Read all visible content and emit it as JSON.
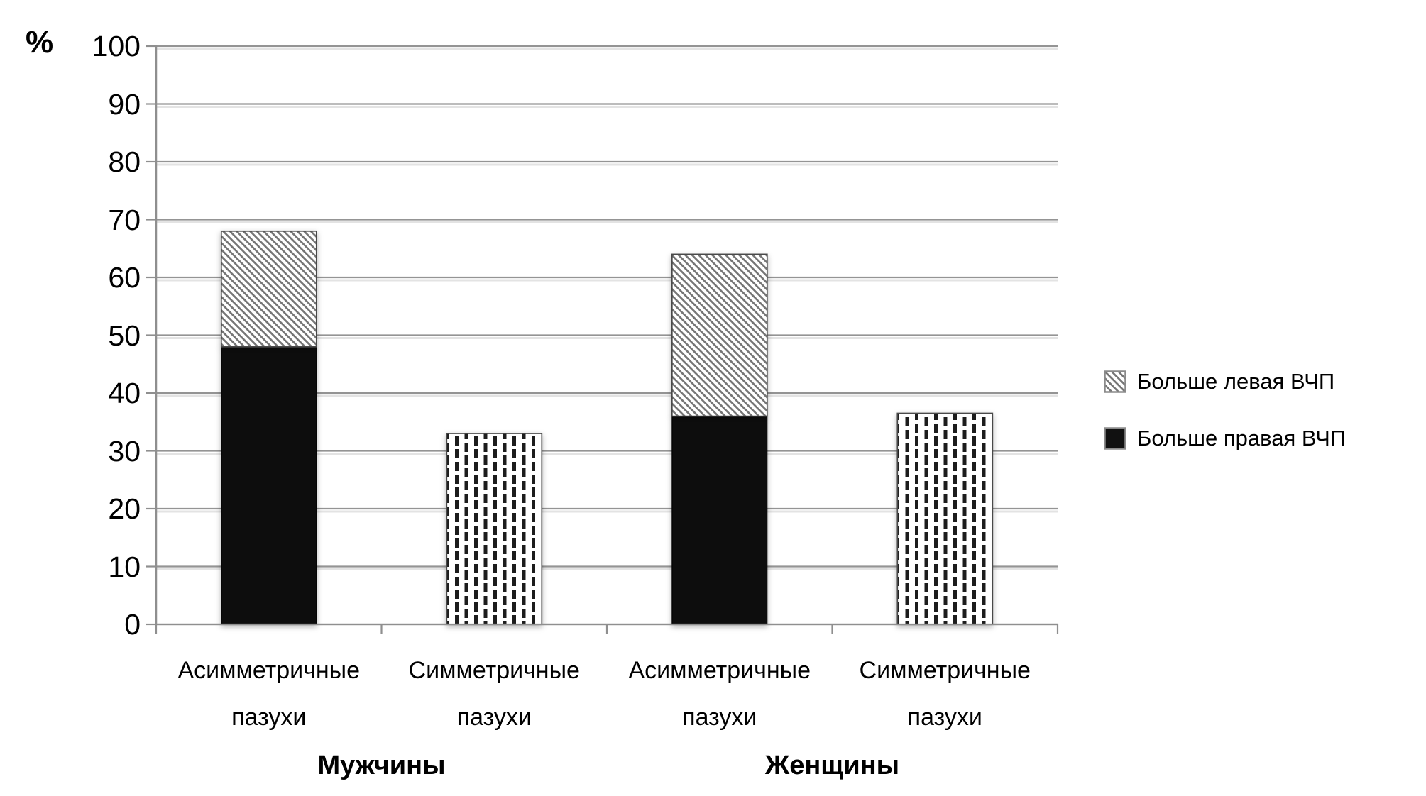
{
  "chart_data": {
    "type": "bar",
    "stacked": true,
    "title": "",
    "y_unit_label": "%",
    "ylabel": "%",
    "xlabel": "",
    "ylim": [
      0,
      100
    ],
    "yticks": [
      0,
      10,
      20,
      30,
      40,
      50,
      60,
      70,
      80,
      90,
      100
    ],
    "grid": true,
    "legend_position": "right",
    "groups": [
      {
        "label": "Мужчины",
        "category_indexes": [
          0,
          1
        ]
      },
      {
        "label": "Женщины",
        "category_indexes": [
          2,
          3
        ]
      }
    ],
    "categories_flat": [
      "Асимметричные пазухи",
      "Симметричные пазухи",
      "Асимметричные пазухи",
      "Симметричные пазухи"
    ],
    "series": [
      {
        "name": "Больше правая ВЧП",
        "in_legend": true,
        "pattern": "solid-black",
        "values": [
          48,
          null,
          36,
          null
        ]
      },
      {
        "name": "Больше левая ВЧП",
        "in_legend": true,
        "pattern": "diagonal-hatch",
        "values": [
          20,
          null,
          28,
          null
        ]
      },
      {
        "name": "Симметричные пазухи",
        "in_legend": false,
        "pattern": "vertical-dash",
        "values": [
          null,
          33,
          null,
          36.5
        ]
      }
    ]
  },
  "legend": {
    "items": [
      {
        "label": "Больше левая ВЧП",
        "pattern": "diagonal-hatch"
      },
      {
        "label": "Больше правая ВЧП",
        "pattern": "solid-black"
      }
    ]
  },
  "colors": {
    "background": "#ffffff",
    "text": "#000000",
    "gridline": "#949494",
    "gridline_shadow": "#e3e3e3",
    "axis": "#8f8f8f",
    "bar_black": "#0d0d0d",
    "hatch_line": "#767676",
    "dash_mark": "#1b1b1b",
    "bar_outline": "#4a4a4a"
  }
}
